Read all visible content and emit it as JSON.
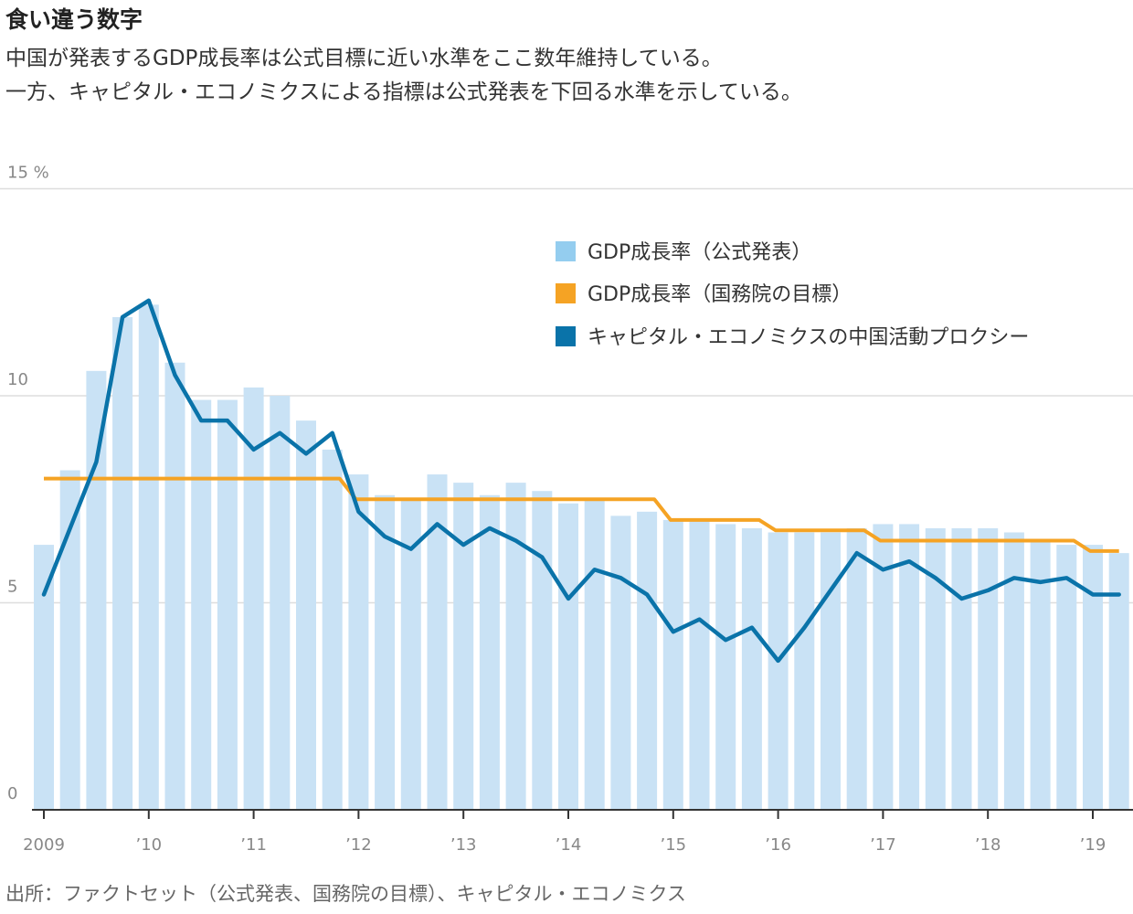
{
  "header": {
    "title": "食い違う数字",
    "subtitle_line1": "中国が発表するGDP成長率は公式目標に近い水準をここ数年維持している。",
    "subtitle_line2": "一方、キャピタル・エコノミクスによる指標は公式発表を下回る水準を示している。"
  },
  "footer": {
    "source": "出所：ファクトセット（公式発表、国務院の目標）、キャピタル・エコノミクス"
  },
  "colors": {
    "bars": "#c9e2f5",
    "legend_bar": "#94cdef",
    "target": "#f5a324",
    "proxy": "#0a73a9",
    "grid": "#dddddd",
    "axis": "#333333"
  },
  "chart_data": {
    "type": "bar",
    "y_unit_label": "%",
    "ylim": [
      0,
      15
    ],
    "y_ticks": [
      {
        "value": 0,
        "label": "0"
      },
      {
        "value": 5,
        "label": "5"
      },
      {
        "value": 10,
        "label": "10"
      },
      {
        "value": 15,
        "label": "15 %"
      }
    ],
    "x_ticks": [
      {
        "quarter_index": 0,
        "label": "2009"
      },
      {
        "quarter_index": 4,
        "label": "’10"
      },
      {
        "quarter_index": 8,
        "label": "’11"
      },
      {
        "quarter_index": 12,
        "label": "’12"
      },
      {
        "quarter_index": 16,
        "label": "’13"
      },
      {
        "quarter_index": 20,
        "label": "’14"
      },
      {
        "quarter_index": 24,
        "label": "’15"
      },
      {
        "quarter_index": 28,
        "label": "’16"
      },
      {
        "quarter_index": 32,
        "label": "’17"
      },
      {
        "quarter_index": 36,
        "label": "’18"
      },
      {
        "quarter_index": 40,
        "label": "’19"
      }
    ],
    "categories": [
      "2009Q1",
      "2009Q2",
      "2009Q3",
      "2009Q4",
      "2010Q1",
      "2010Q2",
      "2010Q3",
      "2010Q4",
      "2011Q1",
      "2011Q2",
      "2011Q3",
      "2011Q4",
      "2012Q1",
      "2012Q2",
      "2012Q3",
      "2012Q4",
      "2013Q1",
      "2013Q2",
      "2013Q3",
      "2013Q4",
      "2014Q1",
      "2014Q2",
      "2014Q3",
      "2014Q4",
      "2015Q1",
      "2015Q2",
      "2015Q3",
      "2015Q4",
      "2016Q1",
      "2016Q2",
      "2016Q3",
      "2016Q4",
      "2017Q1",
      "2017Q2",
      "2017Q3",
      "2017Q4",
      "2018Q1",
      "2018Q2",
      "2018Q3",
      "2018Q4",
      "2019Q1",
      "2019Q2"
    ],
    "legend": {
      "position": "top-right",
      "items": [
        {
          "key": "official",
          "label": "GDP成長率（公式発表）"
        },
        {
          "key": "target",
          "label": "GDP成長率（国務院の目標）"
        },
        {
          "key": "proxy",
          "label": "キャピタル・エコノミクスの中国活動プロクシー"
        }
      ]
    },
    "series": [
      {
        "name": "GDP成長率（公式発表）",
        "type": "bar",
        "values": [
          6.4,
          8.2,
          10.6,
          11.9,
          12.2,
          10.8,
          9.9,
          9.9,
          10.2,
          10.0,
          9.4,
          8.7,
          8.1,
          7.6,
          7.5,
          8.1,
          7.9,
          7.6,
          7.9,
          7.7,
          7.4,
          7.5,
          7.1,
          7.2,
          7.0,
          7.0,
          6.9,
          6.8,
          6.7,
          6.7,
          6.7,
          6.8,
          6.9,
          6.9,
          6.8,
          6.8,
          6.8,
          6.7,
          6.5,
          6.4,
          6.4,
          6.2
        ]
      },
      {
        "name": "GDP成長率（国務院の目標）",
        "type": "step",
        "values": [
          8.0,
          8.0,
          8.0,
          8.0,
          8.0,
          8.0,
          8.0,
          8.0,
          8.0,
          8.0,
          8.0,
          8.0,
          7.5,
          7.5,
          7.5,
          7.5,
          7.5,
          7.5,
          7.5,
          7.5,
          7.5,
          7.5,
          7.5,
          7.5,
          7.0,
          7.0,
          7.0,
          7.0,
          6.75,
          6.75,
          6.75,
          6.75,
          6.5,
          6.5,
          6.5,
          6.5,
          6.5,
          6.5,
          6.5,
          6.5,
          6.25,
          6.25
        ]
      },
      {
        "name": "キャピタル・エコノミクスの中国活動プロクシー",
        "type": "line",
        "values": [
          5.2,
          6.8,
          8.4,
          11.9,
          12.3,
          10.5,
          9.4,
          9.4,
          8.7,
          9.1,
          8.6,
          9.1,
          7.2,
          6.6,
          6.3,
          6.9,
          6.4,
          6.8,
          6.5,
          6.1,
          5.1,
          5.8,
          5.6,
          5.2,
          4.3,
          4.6,
          4.1,
          4.4,
          3.6,
          4.4,
          5.3,
          6.2,
          5.8,
          6.0,
          5.6,
          5.1,
          5.3,
          5.6,
          5.5,
          5.6,
          5.2,
          5.2
        ]
      }
    ]
  }
}
